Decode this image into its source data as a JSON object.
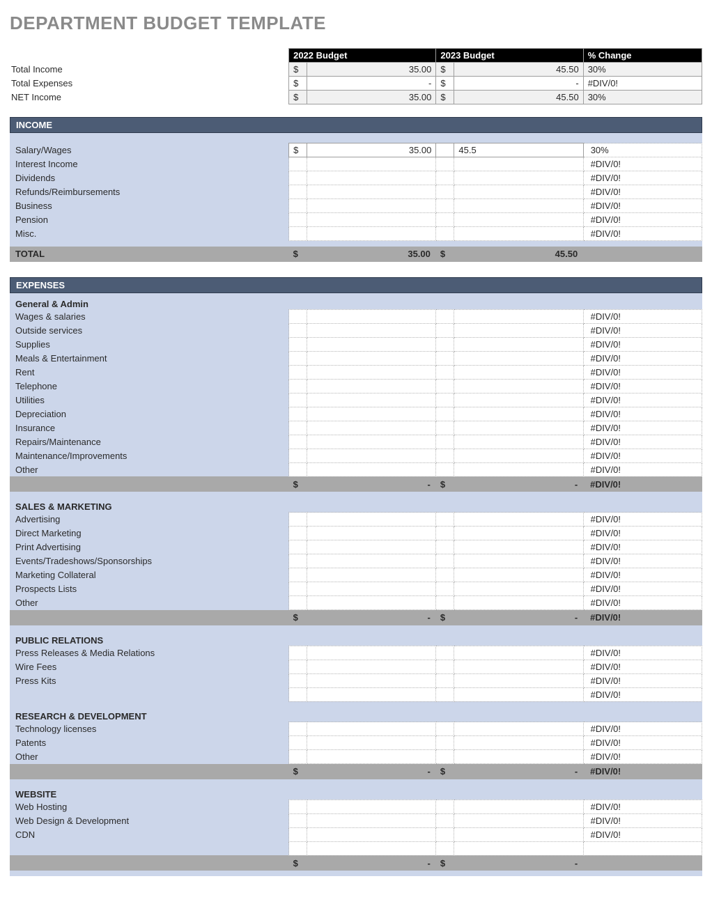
{
  "title": "DEPARTMENT BUDGET TEMPLATE",
  "colors": {
    "header_bg": "#000000",
    "header_fg": "#ffffff",
    "section_bg": "#4c5c75",
    "panel_bg": "#ccd6ea",
    "subtotal_bg": "#a9a9a9",
    "grid_border": "#9e9e9e",
    "dotted_border": "#b5b5b5",
    "title_color": "#8a8a8a"
  },
  "summary": {
    "headers": {
      "col1": "2022 Budget",
      "col2": "2023 Budget",
      "col3": "% Change"
    },
    "rows": [
      {
        "label": "Total Income",
        "sym1": "$",
        "val1": "35.00",
        "sym2": "$",
        "val2": "45.50",
        "pct": "30%",
        "shade": true
      },
      {
        "label": "Total Expenses",
        "sym1": "$",
        "val1": "-",
        "sym2": "$",
        "val2": "-",
        "pct": "#DIV/0!",
        "shade": false
      },
      {
        "label": "NET Income",
        "sym1": "$",
        "val1": "35.00",
        "sym2": "$",
        "val2": "45.50",
        "pct": "30%",
        "shade": true
      }
    ]
  },
  "income": {
    "title": "INCOME",
    "rows": [
      {
        "label": "Salary/Wages",
        "sym1": "$",
        "val1": "35.00",
        "sym2": "",
        "val2": "45.5",
        "pct": "30%",
        "solid": true
      },
      {
        "label": "Interest Income",
        "sym1": "",
        "val1": "",
        "sym2": "",
        "val2": "",
        "pct": "#DIV/0!"
      },
      {
        "label": "Dividends",
        "sym1": "",
        "val1": "",
        "sym2": "",
        "val2": "",
        "pct": "#DIV/0!"
      },
      {
        "label": "Refunds/Reimbursements",
        "sym1": "",
        "val1": "",
        "sym2": "",
        "val2": "",
        "pct": "#DIV/0!"
      },
      {
        "label": "Business",
        "sym1": "",
        "val1": "",
        "sym2": "",
        "val2": "",
        "pct": "#DIV/0!"
      },
      {
        "label": "Pension",
        "sym1": "",
        "val1": "",
        "sym2": "",
        "val2": "",
        "pct": "#DIV/0!"
      },
      {
        "label": "Misc.",
        "sym1": "",
        "val1": "",
        "sym2": "",
        "val2": "",
        "pct": "#DIV/0!"
      }
    ],
    "total": {
      "label": "TOTAL",
      "sym1": "$",
      "val1": "35.00",
      "sym2": "$",
      "val2": "45.50",
      "pct": ""
    }
  },
  "expenses": {
    "title": "EXPENSES",
    "categories": [
      {
        "name": "General & Admin",
        "rows": [
          {
            "label": "Wages & salaries",
            "pct": "#DIV/0!"
          },
          {
            "label": "Outside services",
            "pct": "#DIV/0!"
          },
          {
            "label": "Supplies",
            "pct": "#DIV/0!"
          },
          {
            "label": "Meals & Entertainment",
            "pct": "#DIV/0!"
          },
          {
            "label": "Rent",
            "pct": "#DIV/0!"
          },
          {
            "label": "Telephone",
            "pct": "#DIV/0!"
          },
          {
            "label": "Utilities",
            "pct": "#DIV/0!"
          },
          {
            "label": "Depreciation",
            "pct": "#DIV/0!"
          },
          {
            "label": "Insurance",
            "pct": "#DIV/0!"
          },
          {
            "label": "Repairs/Maintenance",
            "pct": "#DIV/0!"
          },
          {
            "label": "Maintenance/Improvements",
            "pct": "#DIV/0!"
          },
          {
            "label": "Other",
            "pct": "#DIV/0!"
          }
        ],
        "subtotal": {
          "sym1": "$",
          "val1": "-",
          "sym2": "$",
          "val2": "-",
          "pct": "#DIV/0!"
        }
      },
      {
        "name": "SALES & MARKETING",
        "rows": [
          {
            "label": "Advertising",
            "pct": "#DIV/0!"
          },
          {
            "label": "Direct Marketing",
            "pct": "#DIV/0!"
          },
          {
            "label": "Print Advertising",
            "pct": "#DIV/0!"
          },
          {
            "label": "Events/Tradeshows/Sponsorships",
            "pct": "#DIV/0!"
          },
          {
            "label": "Marketing Collateral",
            "pct": "#DIV/0!"
          },
          {
            "label": "Prospects Lists",
            "pct": "#DIV/0!"
          },
          {
            "label": "Other",
            "pct": "#DIV/0!"
          }
        ],
        "subtotal": {
          "sym1": "$",
          "val1": "-",
          "sym2": "$",
          "val2": "-",
          "pct": "#DIV/0!"
        }
      },
      {
        "name": "PUBLIC RELATIONS",
        "rows": [
          {
            "label": "Press Releases & Media Relations",
            "pct": "#DIV/0!"
          },
          {
            "label": "Wire Fees",
            "pct": "#DIV/0!"
          },
          {
            "label": "Press Kits",
            "pct": "#DIV/0!"
          },
          {
            "label": "",
            "pct": "#DIV/0!"
          }
        ],
        "subtotal": null
      },
      {
        "name": "RESEARCH & DEVELOPMENT",
        "rows": [
          {
            "label": "Technology licenses",
            "pct": "#DIV/0!"
          },
          {
            "label": "Patents",
            "pct": "#DIV/0!"
          },
          {
            "label": "Other",
            "pct": "#DIV/0!"
          }
        ],
        "subtotal": {
          "sym1": "$",
          "val1": "-",
          "sym2": "$",
          "val2": "-",
          "pct": "#DIV/0!"
        }
      },
      {
        "name": "WEBSITE",
        "rows": [
          {
            "label": "Web Hosting",
            "pct": "#DIV/0!"
          },
          {
            "label": "Web Design & Development",
            "pct": "#DIV/0!"
          },
          {
            "label": "CDN",
            "pct": "#DIV/0!"
          },
          {
            "label": "",
            "pct": ""
          }
        ],
        "subtotal": {
          "sym1": "$",
          "val1": "-",
          "sym2": "$",
          "val2": "-",
          "pct": ""
        }
      }
    ]
  }
}
